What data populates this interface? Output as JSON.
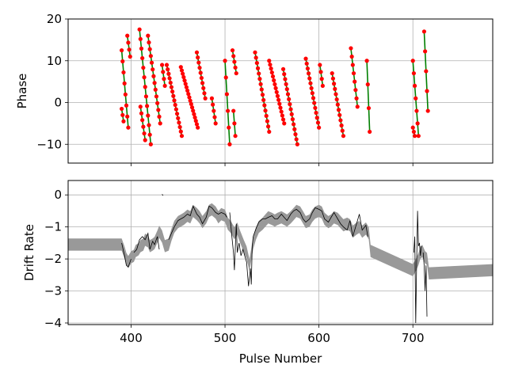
{
  "chart_data": [
    {
      "type": "scatter",
      "panel": "top",
      "xlabel": "",
      "ylabel": "Phase",
      "xlim": [
        333,
        785
      ],
      "ylim": [
        -14.5,
        20
      ],
      "grid": true,
      "xticks": [
        400,
        500,
        600,
        700
      ],
      "xtick_labels": [
        "",
        "",
        "",
        ""
      ],
      "yticks": [
        -10,
        0,
        10,
        20
      ],
      "ytick_labels": [
        "−10",
        "0",
        "10",
        "20"
      ],
      "colors": {
        "points": "#ff0000",
        "fit_lines": "#008000"
      },
      "tracks": [
        {
          "x0": 390,
          "y0": 12.5,
          "x1": 397,
          "y1": -6
        },
        {
          "x0": 390,
          "y0": -1.5,
          "x1": 392,
          "y1": -4.5
        },
        {
          "x0": 396,
          "y0": 16,
          "x1": 399,
          "y1": 11
        },
        {
          "x0": 409,
          "y0": 17.5,
          "x1": 421,
          "y1": -10
        },
        {
          "x0": 410,
          "y0": -1,
          "x1": 415,
          "y1": -9
        },
        {
          "x0": 418,
          "y0": 16,
          "x1": 431,
          "y1": -5
        },
        {
          "x0": 433,
          "y0": 9,
          "x1": 436,
          "y1": 4
        },
        {
          "x0": 438,
          "y0": 9,
          "x1": 454,
          "y1": -8
        },
        {
          "x0": 453,
          "y0": 8.5,
          "x1": 471,
          "y1": -6
        },
        {
          "x0": 470,
          "y0": 12,
          "x1": 479,
          "y1": 1
        },
        {
          "x0": 486,
          "y0": 1,
          "x1": 490,
          "y1": -5
        },
        {
          "x0": 500,
          "y0": 10,
          "x1": 505,
          "y1": -10
        },
        {
          "x0": 508,
          "y0": 12.5,
          "x1": 512,
          "y1": 7
        },
        {
          "x0": 509,
          "y0": -2,
          "x1": 511,
          "y1": -8
        },
        {
          "x0": 532,
          "y0": 12,
          "x1": 547,
          "y1": -7
        },
        {
          "x0": 547,
          "y0": 10,
          "x1": 563,
          "y1": -5
        },
        {
          "x0": 562,
          "y0": 8,
          "x1": 577,
          "y1": -10
        },
        {
          "x0": 586,
          "y0": 10.5,
          "x1": 600,
          "y1": -6
        },
        {
          "x0": 601,
          "y0": 9,
          "x1": 604,
          "y1": 4
        },
        {
          "x0": 614,
          "y0": 7,
          "x1": 626,
          "y1": -8
        },
        {
          "x0": 634,
          "y0": 13,
          "x1": 641,
          "y1": -1
        },
        {
          "x0": 651,
          "y0": 10,
          "x1": 654,
          "y1": -7
        },
        {
          "x0": 700,
          "y0": 10,
          "x1": 706,
          "y1": -8
        },
        {
          "x0": 700,
          "y0": -6,
          "x1": 702,
          "y1": -8
        },
        {
          "x0": 712,
          "y0": 17,
          "x1": 716,
          "y1": -2
        }
      ]
    },
    {
      "type": "line",
      "panel": "bottom",
      "xlabel": "Pulse Number",
      "ylabel": "Drift Rate",
      "xlim": [
        333,
        785
      ],
      "ylim": [
        -4.05,
        0.45
      ],
      "grid": true,
      "xticks": [
        400,
        500,
        600,
        700
      ],
      "xtick_labels": [
        "400",
        "500",
        "600",
        "700"
      ],
      "yticks": [
        -4,
        -3,
        -2,
        -1,
        0
      ],
      "ytick_labels": [
        "−4",
        "−3",
        "−2",
        "−1",
        "0"
      ],
      "colors": {
        "band": "#999999",
        "line": "#000000"
      },
      "band": {
        "half_width": 0.19,
        "x": [
          333,
          390,
          393,
          395,
          397,
          400,
          403,
          405,
          408,
          410,
          413,
          415,
          418,
          420,
          423,
          425,
          428,
          430,
          433,
          436,
          440,
          443,
          446,
          450,
          453,
          456,
          460,
          463,
          466,
          470,
          473,
          476,
          480,
          483,
          486,
          490,
          493,
          496,
          500,
          503,
          506,
          510,
          513,
          516,
          520,
          523,
          526,
          530,
          533,
          536,
          540,
          543,
          546,
          550,
          553,
          556,
          560,
          563,
          566,
          570,
          573,
          576,
          580,
          583,
          586,
          590,
          593,
          596,
          600,
          603,
          606,
          610,
          613,
          616,
          620,
          623,
          626,
          630,
          633,
          636,
          640,
          643,
          646,
          650,
          653,
          655,
          700,
          703,
          706,
          708,
          710,
          713,
          715,
          717,
          785
        ],
        "y": [
          -1.55,
          -1.55,
          -1.8,
          -2.0,
          -2.1,
          -1.95,
          -1.9,
          -1.75,
          -1.7,
          -1.6,
          -1.55,
          -1.4,
          -1.45,
          -1.6,
          -1.55,
          -1.5,
          -1.3,
          -1.15,
          -1.3,
          -1.6,
          -1.55,
          -1.25,
          -1.0,
          -0.85,
          -0.8,
          -0.75,
          -0.65,
          -0.7,
          -0.5,
          -0.6,
          -0.7,
          -0.85,
          -0.7,
          -0.5,
          -0.45,
          -0.55,
          -0.7,
          -0.6,
          -0.65,
          -0.9,
          -1.0,
          -1.2,
          -1.05,
          -1.3,
          -1.6,
          -1.8,
          -2.2,
          -1.5,
          -1.2,
          -1.0,
          -0.9,
          -0.8,
          -0.7,
          -0.75,
          -0.8,
          -0.75,
          -0.7,
          -0.75,
          -0.8,
          -0.7,
          -0.6,
          -0.5,
          -0.55,
          -0.7,
          -0.85,
          -0.8,
          -0.65,
          -0.55,
          -0.5,
          -0.55,
          -0.75,
          -0.85,
          -0.8,
          -0.7,
          -0.75,
          -0.85,
          -0.95,
          -0.9,
          -0.95,
          -1.15,
          -1.05,
          -1.0,
          -1.15,
          -1.05,
          -1.2,
          -1.75,
          -2.35,
          -2.2,
          -2.0,
          -1.8,
          -1.75,
          -1.95,
          -2.0,
          -2.45,
          -2.35
        ]
      },
      "line": {
        "segments": [
          {
            "x": [
              390,
              393,
              395,
              397,
              400
            ],
            "y": [
              -1.5,
              -1.9,
              -2.2,
              -2.25,
              -2.0
            ]
          },
          {
            "x": [
              403,
              406,
              409,
              412,
              415,
              418,
              420,
              423,
              425,
              428,
              430
            ],
            "y": [
              -1.8,
              -1.7,
              -1.4,
              -1.3,
              -1.4,
              -1.2,
              -1.7,
              -1.45,
              -1.55,
              -1.3,
              -1.7
            ]
          },
          {
            "x": [
              433,
              434
            ],
            "y": [
              0.02,
              -0.02
            ]
          },
          {
            "x": [
              440,
              443,
              446,
              450,
              453,
              456,
              460,
              463,
              466,
              470,
              473,
              476,
              480,
              483,
              486,
              490,
              493,
              496,
              500,
              502
            ],
            "y": [
              -1.4,
              -1.2,
              -1.0,
              -0.8,
              -0.75,
              -0.7,
              -0.6,
              -0.65,
              -0.35,
              -0.6,
              -0.7,
              -0.9,
              -0.7,
              -0.35,
              -0.4,
              -0.55,
              -0.6,
              -0.55,
              -0.6,
              -0.7
            ]
          },
          {
            "x": [
              505,
              507,
              509,
              510,
              512,
              513,
              515,
              517,
              519,
              521,
              523,
              525,
              527,
              528,
              529,
              530
            ],
            "y": [
              -0.55,
              -1.2,
              -1.8,
              -2.35,
              -0.9,
              -1.8,
              -1.5,
              -1.9,
              -1.7,
              -1.9,
              -2.1,
              -2.85,
              -2.3,
              -2.8,
              -1.6,
              -1.3
            ]
          },
          {
            "x": [
              530,
              533,
              536,
              540,
              543,
              546,
              550,
              553,
              556,
              560,
              563,
              566,
              570,
              573,
              576,
              580,
              583,
              586,
              590,
              593,
              596,
              600,
              603,
              606,
              610,
              613,
              616,
              620,
              623,
              626,
              630,
              633,
              636,
              640,
              643,
              646,
              650,
              652
            ],
            "y": [
              -1.3,
              -1.05,
              -0.85,
              -0.75,
              -0.75,
              -0.7,
              -0.65,
              -0.75,
              -0.75,
              -0.6,
              -0.7,
              -0.8,
              -0.6,
              -0.5,
              -0.45,
              -0.55,
              -0.75,
              -0.85,
              -0.75,
              -0.55,
              -0.4,
              -0.45,
              -0.5,
              -0.75,
              -0.85,
              -0.7,
              -0.55,
              -0.75,
              -0.9,
              -1.0,
              -1.1,
              -0.8,
              -1.3,
              -0.9,
              -0.6,
              -1.1,
              -0.95,
              -1.3
            ]
          },
          {
            "x": [
              701,
              702,
              703,
              704,
              705,
              706,
              707,
              708,
              709
            ],
            "y": [
              -1.8,
              -1.3,
              -4.0,
              -2.2,
              -0.5,
              -1.6,
              -1.5,
              -1.9,
              -1.6
            ]
          },
          {
            "x": [
              711,
              712,
              713,
              714,
              715
            ],
            "y": [
              -1.8,
              -2.2,
              -3.0,
              -2.2,
              -3.8
            ]
          }
        ]
      }
    }
  ]
}
